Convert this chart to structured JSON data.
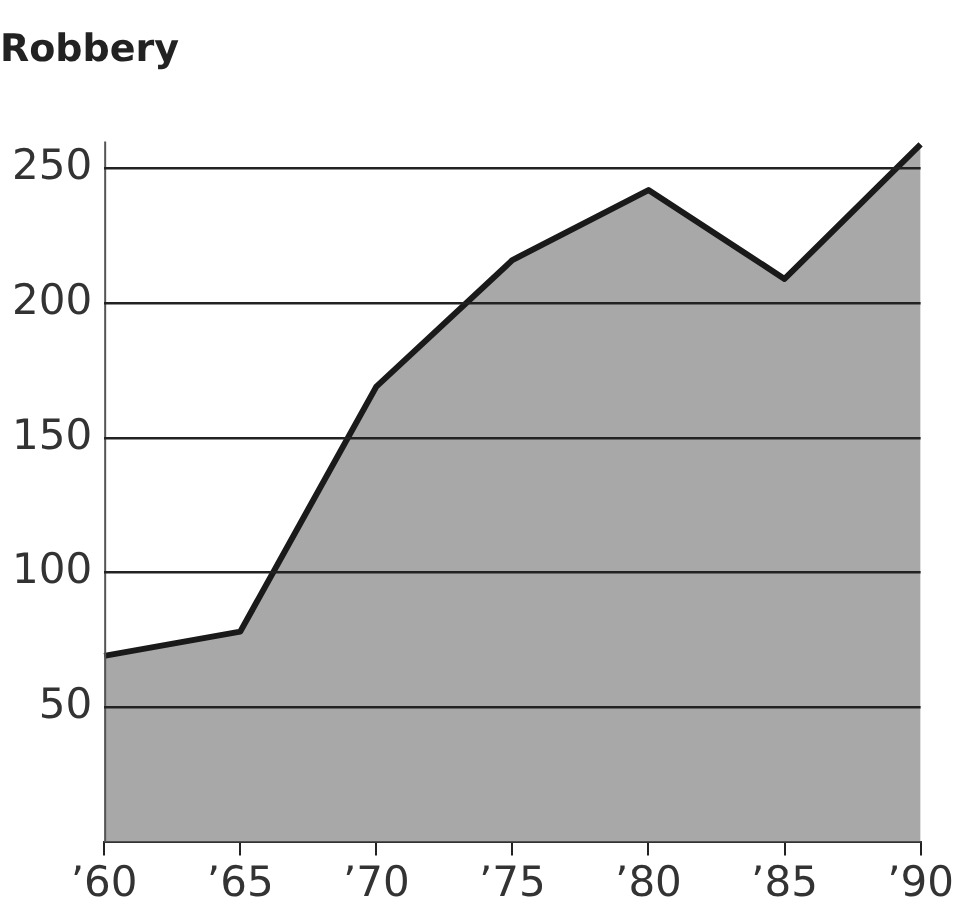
{
  "chart_data": {
    "type": "area",
    "title": "Robbery",
    "categories": [
      "’60",
      "’65",
      "’70",
      "’75",
      "’80",
      "’85",
      "’90"
    ],
    "series": [
      {
        "color": "#a8a8a8",
        "values": [
          69,
          78,
          169,
          216,
          242,
          209,
          259
        ]
      }
    ],
    "ylim": [
      0,
      260
    ],
    "yticks": [
      50,
      100,
      150,
      200,
      250
    ],
    "grid": "y",
    "legend": false,
    "marker": "none",
    "line_style": "solid"
  }
}
